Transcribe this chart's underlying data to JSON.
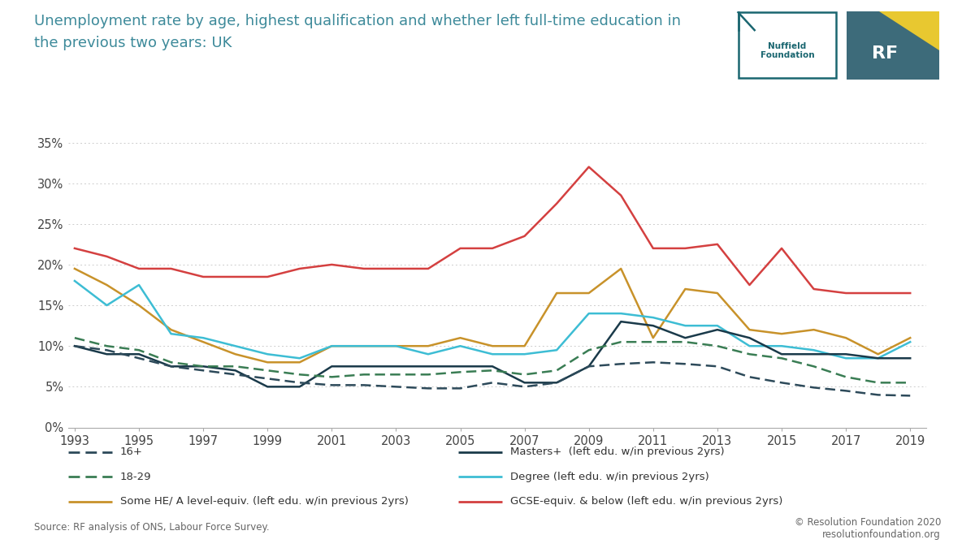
{
  "title_line1": "Unemployment rate by age, highest qualification and whether left full-time education in",
  "title_line2": "the previous two years: UK",
  "years": [
    1993,
    1994,
    1995,
    1996,
    1997,
    1998,
    1999,
    2000,
    2001,
    2002,
    2003,
    2004,
    2005,
    2006,
    2007,
    2008,
    2009,
    2010,
    2011,
    2012,
    2013,
    2014,
    2015,
    2016,
    2017,
    2018,
    2019
  ],
  "series": {
    "16plus": {
      "label": "16+",
      "color": "#2d4a5a",
      "linestyle": "dashed",
      "linewidth": 1.8,
      "values": [
        10.0,
        9.5,
        8.5,
        7.5,
        7.0,
        6.5,
        6.0,
        5.5,
        5.2,
        5.2,
        5.0,
        4.8,
        4.8,
        5.5,
        5.0,
        5.5,
        7.5,
        7.8,
        8.0,
        7.8,
        7.5,
        6.2,
        5.5,
        4.9,
        4.5,
        4.0,
        3.9
      ]
    },
    "18to29": {
      "label": "18-29",
      "color": "#3a7d54",
      "linestyle": "dashed",
      "linewidth": 1.8,
      "values": [
        11.0,
        10.0,
        9.5,
        8.0,
        7.5,
        7.5,
        7.0,
        6.5,
        6.2,
        6.5,
        6.5,
        6.5,
        6.8,
        7.0,
        6.5,
        7.0,
        9.5,
        10.5,
        10.5,
        10.5,
        10.0,
        9.0,
        8.5,
        7.5,
        6.2,
        5.5,
        5.5
      ]
    },
    "masters": {
      "label": "Masters+  (left edu. w/in previous 2yrs)",
      "color": "#1a3a4a",
      "linestyle": "solid",
      "linewidth": 1.8,
      "values": [
        10.0,
        9.0,
        9.0,
        7.5,
        7.5,
        7.0,
        5.0,
        5.0,
        7.5,
        7.5,
        7.5,
        7.5,
        7.5,
        7.5,
        5.5,
        5.5,
        7.5,
        13.0,
        12.5,
        11.0,
        12.0,
        11.0,
        9.0,
        9.0,
        9.0,
        8.5,
        8.5
      ]
    },
    "degree": {
      "label": "Degree (left edu. w/in previous 2yrs)",
      "color": "#3dbdd4",
      "linestyle": "solid",
      "linewidth": 1.8,
      "values": [
        18.0,
        15.0,
        17.5,
        11.5,
        11.0,
        10.0,
        9.0,
        8.5,
        10.0,
        10.0,
        10.0,
        9.0,
        10.0,
        9.0,
        9.0,
        9.5,
        14.0,
        14.0,
        13.5,
        12.5,
        12.5,
        10.0,
        10.0,
        9.5,
        8.5,
        8.5,
        10.5
      ]
    },
    "some_he": {
      "label": "Some HE/ A level-equiv. (left edu. w/in previous 2yrs)",
      "color": "#c8922a",
      "linestyle": "solid",
      "linewidth": 1.8,
      "values": [
        19.5,
        17.5,
        15.0,
        12.0,
        10.5,
        9.0,
        8.0,
        8.0,
        10.0,
        10.0,
        10.0,
        10.0,
        11.0,
        10.0,
        10.0,
        16.5,
        16.5,
        19.5,
        11.0,
        17.0,
        16.5,
        12.0,
        11.5,
        12.0,
        11.0,
        9.0,
        11.0
      ]
    },
    "gcse": {
      "label": "GCSE-equiv. & below (left edu. w/in previous 2yrs)",
      "color": "#d44040",
      "linestyle": "solid",
      "linewidth": 1.8,
      "values": [
        22.0,
        21.0,
        19.5,
        19.5,
        18.5,
        18.5,
        18.5,
        19.5,
        20.0,
        19.5,
        19.5,
        19.5,
        22.0,
        22.0,
        23.5,
        27.5,
        32.0,
        28.5,
        22.0,
        22.0,
        22.5,
        17.5,
        22.0,
        17.0,
        16.5,
        16.5,
        16.5
      ]
    }
  },
  "ylim": [
    0,
    35
  ],
  "yticks": [
    0,
    5,
    10,
    15,
    20,
    25,
    30,
    35
  ],
  "ytick_labels": [
    "0%",
    "5%",
    "10%",
    "15%",
    "20%",
    "25%",
    "30%",
    "35%"
  ],
  "xlim": [
    1993,
    2019
  ],
  "xticks": [
    1993,
    1995,
    1997,
    1999,
    2001,
    2003,
    2005,
    2007,
    2009,
    2011,
    2013,
    2015,
    2017,
    2019
  ],
  "bg_color": "#ffffff",
  "source_text": "Source: RF analysis of ONS, Labour Force Survey.",
  "copyright_text": "© Resolution Foundation 2020\nresolutionfoundation.org",
  "title_color": "#3d8a9a",
  "grid_color": "#cccccc",
  "nuffield_color": "#1a6670",
  "rf_bg_color": "#3d6b7a",
  "rf_yellow_color": "#e8c830"
}
